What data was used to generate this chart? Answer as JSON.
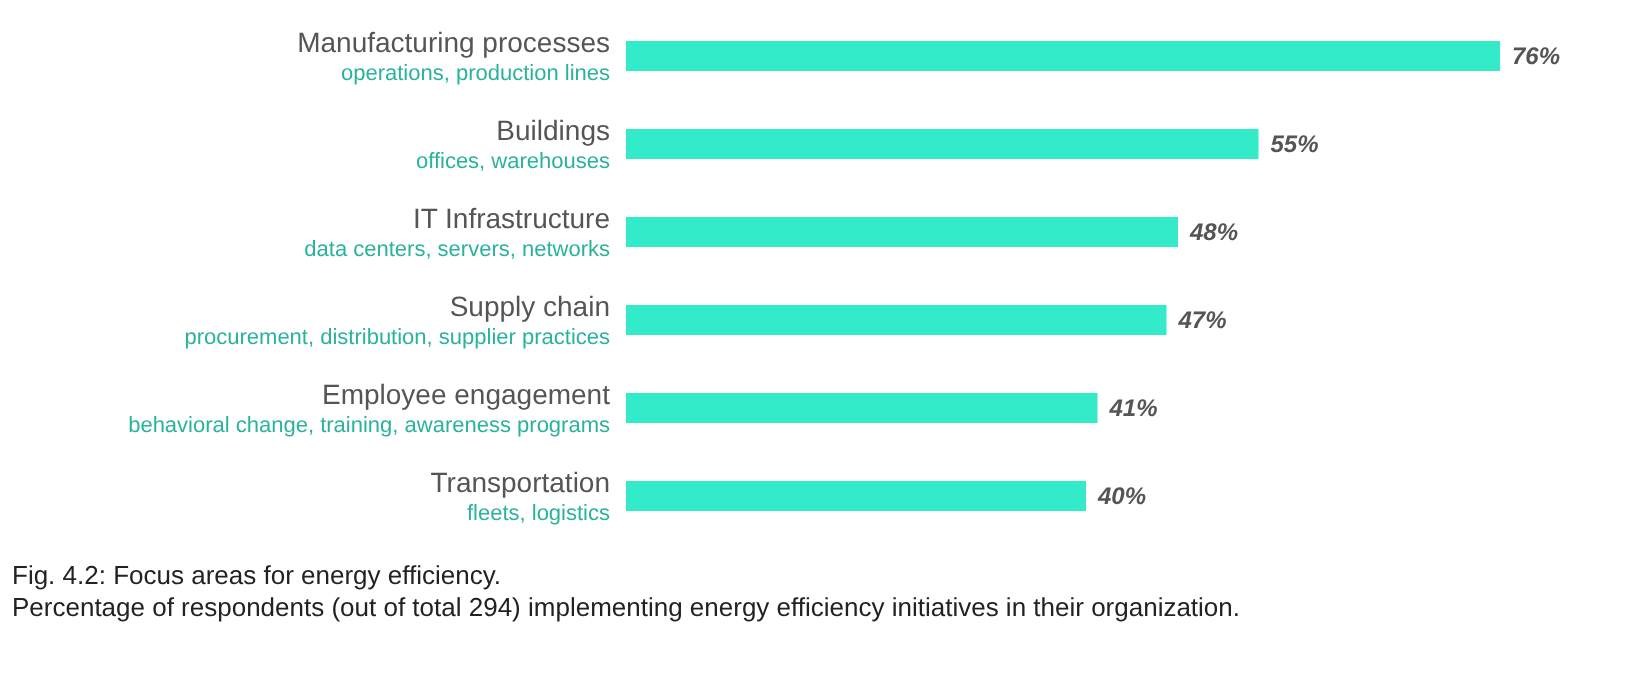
{
  "chart_data": {
    "type": "bar",
    "orientation": "horizontal",
    "title": "Fig. 4.2: Focus areas for energy efficiency.",
    "subtitle": "Percentage of respondents (out of total 294) implementing energy efficiency initiatives in their organization.",
    "categories": [
      "Manufacturing processes\noperations, production lines",
      "Buildings\noffices, warehouses",
      "IT Infrastructure\ndata centers, servers, networks",
      "Supply chain\nprocurement, distribution, supplier practices",
      "Employee engagement\nbehavioral change, training, awareness programs",
      "Transportation\nfleets, logistics"
    ],
    "values": [
      76,
      55,
      48,
      47,
      41,
      40
    ],
    "value_labels": [
      "76%",
      "55%",
      "48%",
      "47%",
      "41%",
      "40%"
    ],
    "color": "#33ebc9"
  }
}
